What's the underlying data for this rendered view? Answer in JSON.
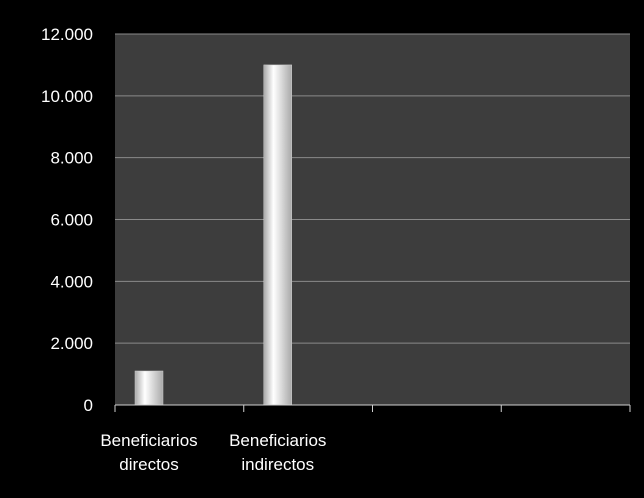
{
  "chart_data": {
    "type": "bar",
    "title": "",
    "xlabel": "",
    "ylabel": "",
    "categories": [
      [
        "Beneficiarios",
        "directos"
      ],
      [
        "Beneficiarios",
        "indirectos"
      ],
      [
        "",
        ""
      ],
      [
        "",
        ""
      ]
    ],
    "values": [
      1100,
      11000,
      null,
      null
    ],
    "ylim": [
      0,
      12000
    ],
    "yticks": [
      0,
      2000,
      4000,
      6000,
      8000,
      10000,
      12000
    ],
    "ytick_labels": [
      "0",
      "2.000",
      "4.000",
      "6.000",
      "8.000",
      "10.000",
      "12.000"
    ],
    "grid": true,
    "legend": "none",
    "colors": {
      "background": "#000000",
      "plot_area": "#3d3d3d",
      "gridline": "#8a8a8a",
      "axis": "#d0d0d0",
      "bar_light": "#ffffff",
      "bar_dark": "#a9a9a9"
    }
  }
}
